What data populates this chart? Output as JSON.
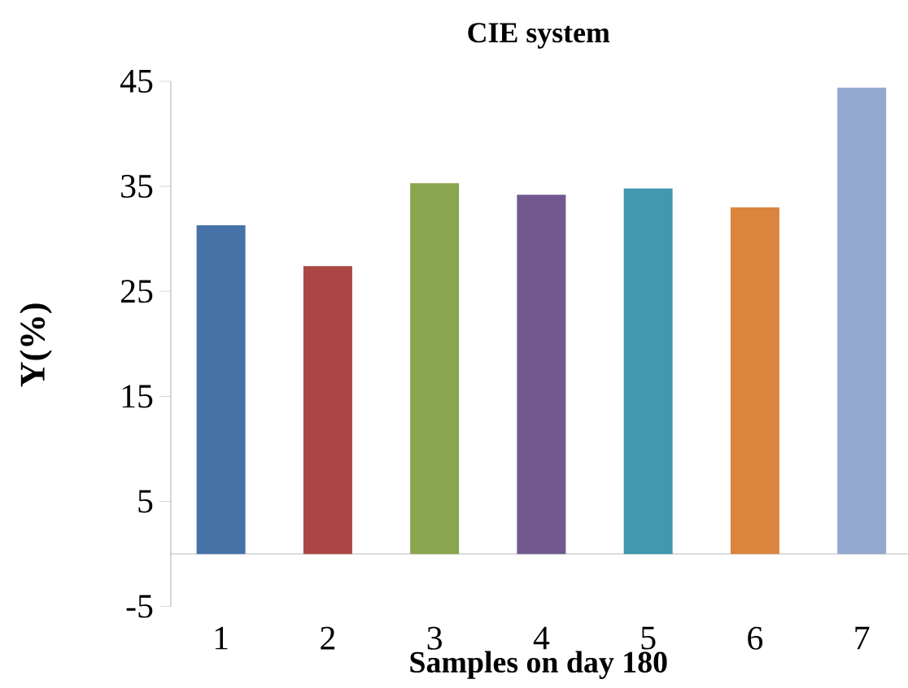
{
  "chart_data": {
    "type": "bar",
    "title": "CIE system",
    "xlabel": "Samples on day 180",
    "ylabel": "Y(%)",
    "categories": [
      "1",
      "2",
      "3",
      "4",
      "5",
      "6",
      "7"
    ],
    "values": [
      31.3,
      27.4,
      35.3,
      34.2,
      34.8,
      33.0,
      44.4
    ],
    "colors": [
      "#4572a7",
      "#aa4643",
      "#89a54e",
      "#71588f",
      "#4198af",
      "#db843d",
      "#93a9cf"
    ],
    "ylim": [
      -5,
      45
    ],
    "yticks": [
      -5,
      5,
      15,
      25,
      35,
      45
    ]
  }
}
